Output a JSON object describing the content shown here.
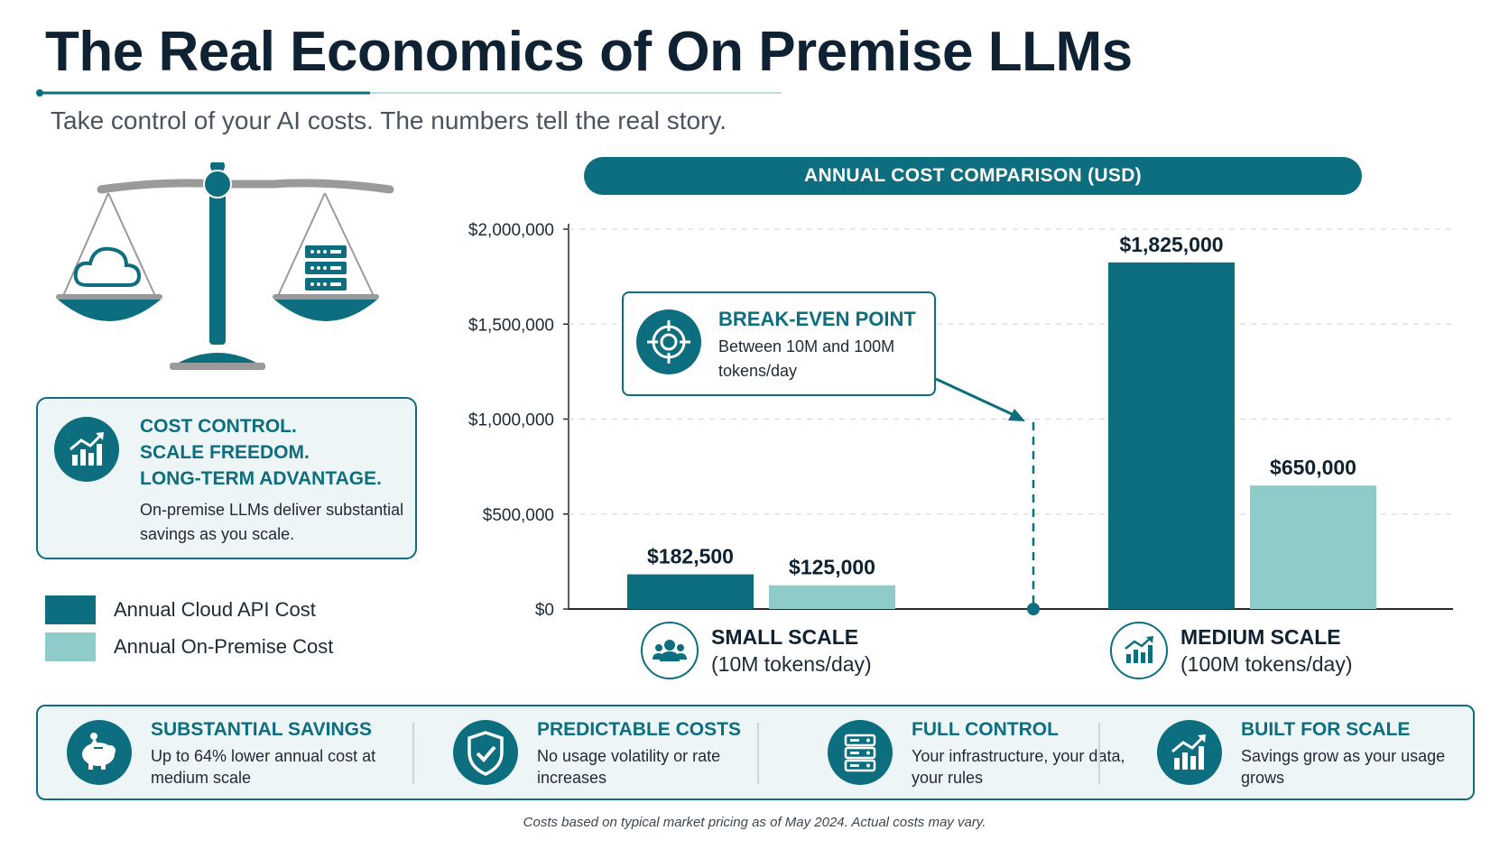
{
  "page": {
    "title": "The Real Economics of On Premise LLMs",
    "subtitle": "Take control of your AI costs. The numbers tell the real story."
  },
  "info_card": {
    "headline": [
      "COST CONTROL.",
      "SCALE FREEDOM.",
      "LONG-TERM ADVANTAGE."
    ],
    "body": "On-premise LLMs deliver substantial savings as you scale.",
    "icon": "growth-chart-icon"
  },
  "chart_data": {
    "type": "bar",
    "title": "ANNUAL COST COMPARISON (USD)",
    "categories": [
      {
        "title": "SMALL SCALE",
        "subtitle": "(10M tokens/day)",
        "icon": "users-icon"
      },
      {
        "title": "MEDIUM SCALE",
        "subtitle": "(100M tokens/day)",
        "icon": "growth-chart-icon"
      }
    ],
    "series": [
      {
        "name": "Annual Cloud API Cost",
        "color": "#0c6e7e",
        "values": [
          182500,
          1825000
        ],
        "labels": [
          "$182,500",
          "$1,825,000"
        ]
      },
      {
        "name": "Annual On-Premise Cost",
        "color": "#8ecbc9",
        "values": [
          125000,
          650000
        ],
        "labels": [
          "$125,000",
          "$650,000"
        ]
      }
    ],
    "y_ticks": [
      {
        "value": 0,
        "label": "$0"
      },
      {
        "value": 500000,
        "label": "$500,000"
      },
      {
        "value": 1000000,
        "label": "$1,000,000"
      },
      {
        "value": 1500000,
        "label": "$1,500,000"
      },
      {
        "value": 2000000,
        "label": "$2,000,000"
      }
    ],
    "ylim": [
      0,
      2000000
    ],
    "grid": true,
    "legend_position": "left",
    "annotation": {
      "title": "BREAK-EVEN POINT",
      "text": "Between 10M and 100M tokens/day",
      "icon": "target-icon"
    }
  },
  "features": [
    {
      "title": "SUBSTANTIAL SAVINGS",
      "text": "Up to 64% lower annual cost at medium scale",
      "icon": "piggy-bank-icon"
    },
    {
      "title": "PREDICTABLE COSTS",
      "text": "No usage volatility or rate increases",
      "icon": "shield-check-icon"
    },
    {
      "title": "FULL CONTROL",
      "text": "Your infrastructure, your data, your rules",
      "icon": "server-icon"
    },
    {
      "title": "BUILT FOR SCALE",
      "text": "Savings grow as your usage grows",
      "icon": "growth-chart-icon"
    }
  ],
  "footnote": "Costs based on typical market pricing as of May 2024. Actual costs may vary.",
  "colors": {
    "accent": "#0c6e7e",
    "accent_light": "#8ecbc9",
    "panel_bg": "#eef5f6",
    "heading": "#0e2233"
  }
}
